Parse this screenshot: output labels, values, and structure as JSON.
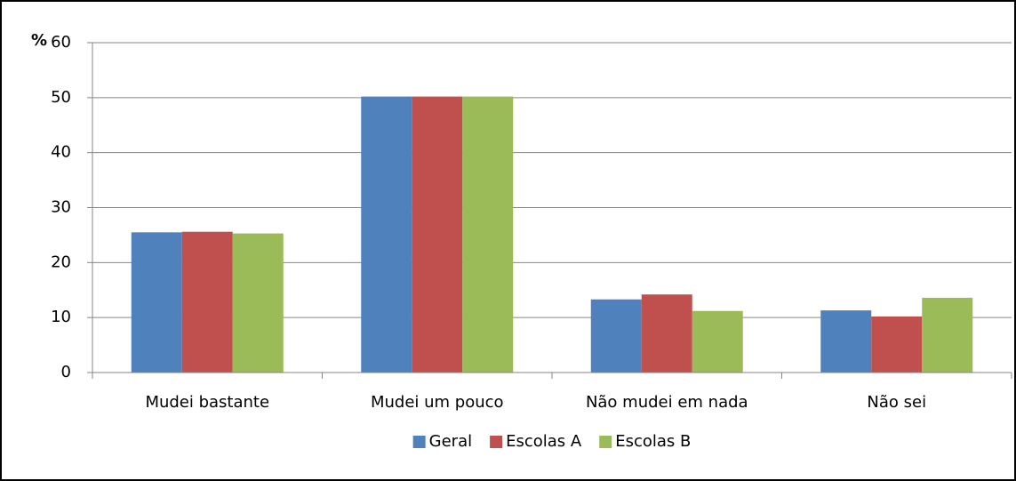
{
  "chart_data": {
    "type": "bar",
    "y_label": "%",
    "categories": [
      "Mudei bastante",
      "Mudei um pouco",
      "Não mudei em nada",
      "Não sei"
    ],
    "series": [
      {
        "name": "Geral",
        "color": "#4f81bd",
        "values": [
          25.5,
          50.2,
          13.3,
          11.3
        ]
      },
      {
        "name": "Escolas A",
        "color": "#c0504d",
        "values": [
          25.6,
          50.2,
          14.2,
          10.2
        ]
      },
      {
        "name": "Escolas B",
        "color": "#9bbb59",
        "values": [
          25.3,
          50.2,
          11.2,
          13.6
        ]
      }
    ],
    "ylim": [
      0,
      60
    ],
    "yticks": [
      0,
      10,
      20,
      30,
      40,
      50,
      60
    ],
    "grid": true,
    "legend": "bottom"
  }
}
